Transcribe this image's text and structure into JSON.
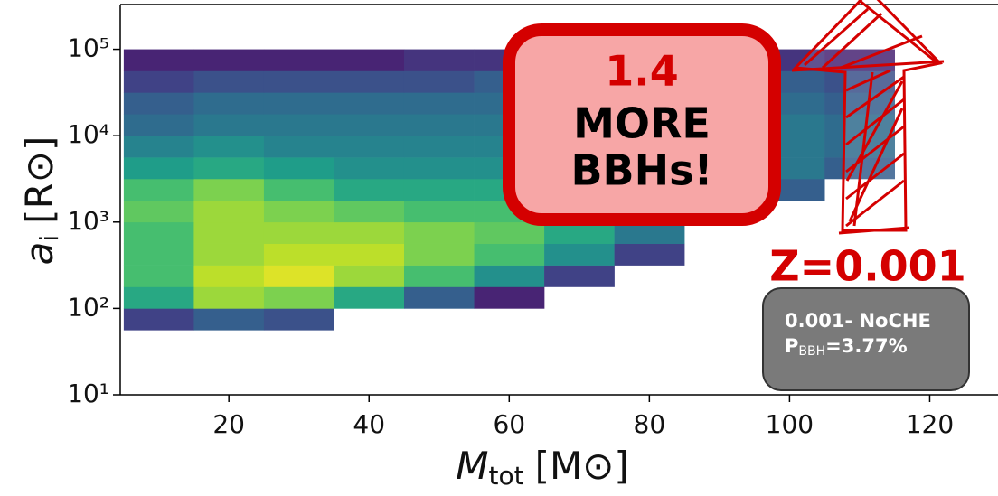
{
  "chart_data": {
    "type": "heatmap",
    "x_label": {
      "symbol": "M",
      "subscript": "tot",
      "unit": "[M⊙]"
    },
    "y_label": {
      "symbol": "a",
      "subscript": "i",
      "unit": "[R⊙]"
    },
    "xlim": [
      4.5,
      130
    ],
    "ylim": [
      10,
      330000
    ],
    "log_y": true,
    "xticks": [
      20,
      40,
      60,
      80,
      100,
      120
    ],
    "yticks": [
      {
        "value": 10,
        "label": "10¹"
      },
      {
        "value": 100,
        "label": "10²"
      },
      {
        "value": 1000,
        "label": "10³"
      },
      {
        "value": 10000,
        "label": "10⁴"
      },
      {
        "value": 100000,
        "label": "10⁵"
      }
    ],
    "colormap": "viridis",
    "x_edges": [
      5,
      15,
      25,
      35,
      45,
      55,
      65,
      75,
      85,
      95,
      105,
      115
    ],
    "y_edges": [
      56.2,
      100,
      177.8,
      316.2,
      562.3,
      1000,
      1778,
      3162,
      5623,
      10000,
      17783,
      31623,
      56234,
      100000
    ],
    "z": [
      [
        0.2,
        0.3,
        0.25,
        null,
        null,
        null,
        null,
        null,
        null,
        null,
        null
      ],
      [
        0.6,
        0.85,
        0.8,
        0.6,
        0.3,
        0.1,
        null,
        null,
        null,
        null,
        null
      ],
      [
        0.7,
        0.9,
        0.95,
        0.85,
        0.7,
        0.5,
        0.2,
        null,
        null,
        null,
        null
      ],
      [
        0.7,
        0.85,
        0.9,
        0.9,
        0.8,
        0.7,
        0.5,
        0.2,
        null,
        null,
        null
      ],
      [
        0.7,
        0.85,
        0.85,
        0.85,
        0.8,
        0.75,
        0.6,
        0.4,
        null,
        null,
        null
      ],
      [
        0.75,
        0.85,
        0.8,
        0.75,
        0.7,
        0.7,
        0.65,
        0.55,
        0.3,
        null,
        null
      ],
      [
        0.7,
        0.8,
        0.7,
        0.6,
        0.6,
        0.6,
        0.6,
        0.55,
        0.45,
        0.3,
        null
      ],
      [
        0.55,
        0.6,
        0.55,
        0.5,
        0.5,
        0.5,
        0.55,
        0.55,
        0.5,
        0.4,
        0.3
      ],
      [
        0.45,
        0.5,
        0.45,
        0.45,
        0.45,
        0.45,
        0.5,
        0.5,
        0.45,
        0.4,
        0.35
      ],
      [
        0.35,
        0.4,
        0.4,
        0.4,
        0.4,
        0.4,
        0.45,
        0.45,
        0.45,
        0.4,
        0.35
      ],
      [
        0.3,
        0.35,
        0.35,
        0.35,
        0.35,
        0.35,
        0.4,
        0.4,
        0.4,
        0.35,
        0.3
      ],
      [
        0.2,
        0.25,
        0.25,
        0.25,
        0.25,
        0.3,
        0.3,
        0.3,
        0.3,
        0.3,
        0.25
      ],
      [
        0.1,
        0.1,
        0.1,
        0.1,
        0.15,
        0.15,
        0.15,
        0.15,
        0.15,
        0.15,
        0.1
      ]
    ],
    "annotations": {
      "callout": [
        "1.4",
        "MORE",
        "BBHs!"
      ],
      "metallicity": "Z=0.001",
      "info_box": {
        "line1": "0.001- NoCHE",
        "p_symbol": "P",
        "p_subscript": "BBH",
        "p_value": "=3.77%"
      }
    }
  }
}
